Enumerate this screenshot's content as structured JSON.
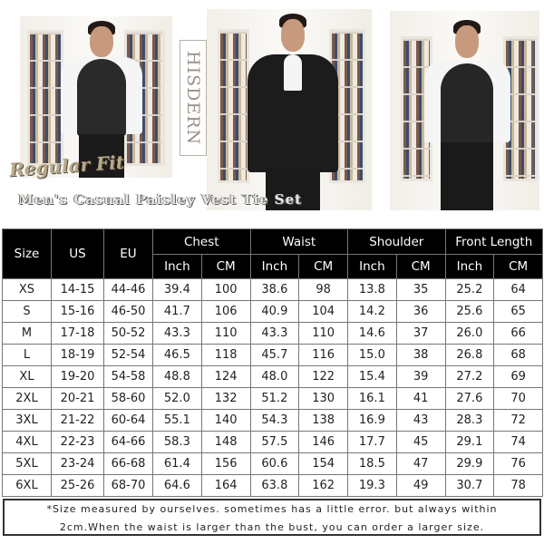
{
  "brand": "HISDERN",
  "fit_label": "Regular Fit",
  "subtitle": "Men's Casual Paisley Vest Tie Set",
  "table": {
    "headers": {
      "size": "Size",
      "us": "US",
      "eu": "EU",
      "groups": [
        "Chest",
        "Waist",
        "Shoulder",
        "Front Length"
      ],
      "units": [
        "Inch",
        "CM",
        "Inch",
        "CM",
        "Inch",
        "CM",
        "Inch",
        "CM"
      ]
    },
    "rows": [
      [
        "XS",
        "14-15",
        "44-46",
        "39.4",
        "100",
        "38.6",
        "98",
        "13.8",
        "35",
        "25.2",
        "64"
      ],
      [
        "S",
        "15-16",
        "46-50",
        "41.7",
        "106",
        "40.9",
        "104",
        "14.2",
        "36",
        "25.6",
        "65"
      ],
      [
        "M",
        "17-18",
        "50-52",
        "43.3",
        "110",
        "43.3",
        "110",
        "14.6",
        "37",
        "26.0",
        "66"
      ],
      [
        "L",
        "18-19",
        "52-54",
        "46.5",
        "118",
        "45.7",
        "116",
        "15.0",
        "38",
        "26.8",
        "68"
      ],
      [
        "XL",
        "19-20",
        "54-58",
        "48.8",
        "124",
        "48.0",
        "122",
        "15.4",
        "39",
        "27.2",
        "69"
      ],
      [
        "2XL",
        "20-21",
        "58-60",
        "52.0",
        "132",
        "51.2",
        "130",
        "16.1",
        "41",
        "27.6",
        "70"
      ],
      [
        "3XL",
        "21-22",
        "60-64",
        "55.1",
        "140",
        "54.3",
        "138",
        "16.9",
        "43",
        "28.3",
        "72"
      ],
      [
        "4XL",
        "22-23",
        "64-66",
        "58.3",
        "148",
        "57.5",
        "146",
        "17.7",
        "45",
        "29.1",
        "74"
      ],
      [
        "5XL",
        "23-24",
        "66-68",
        "61.4",
        "156",
        "60.6",
        "154",
        "18.5",
        "47",
        "29.9",
        "76"
      ],
      [
        "6XL",
        "25-26",
        "68-70",
        "64.6",
        "164",
        "63.8",
        "162",
        "19.3",
        "49",
        "30.7",
        "78"
      ]
    ]
  },
  "note": {
    "line1": "*Size measured by ourselves. sometimes has a little error. but always within",
    "line2": "2cm.When the waist is larger than the bust, you can order a larger size."
  }
}
